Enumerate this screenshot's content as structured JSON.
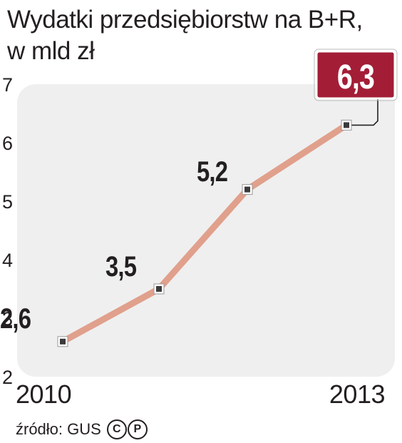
{
  "title": {
    "line1": "Wydatki przedsiębiorstw na B+R,",
    "line2": "w mld zł"
  },
  "source": {
    "label": "źródło: GUS",
    "copyright_marks": [
      "C",
      "P"
    ]
  },
  "colors": {
    "line": "#e0a08c",
    "marker_fill": "#ffffff",
    "marker_core": "#3a3a3a",
    "plot_background": "#efefef",
    "highlight_box": "#a31d36",
    "text": "#231f20"
  },
  "chart_data": {
    "type": "line",
    "title": "Wydatki przedsiębiorstw na B+R, w mld zł",
    "xlabel": "",
    "ylabel": "",
    "x": [
      2010,
      2011,
      2012,
      2013
    ],
    "x_tick_labels": [
      "2010",
      "2013"
    ],
    "values": [
      2.6,
      3.5,
      5.2,
      6.3
    ],
    "data_labels": [
      "2,6",
      "3,5",
      "5,2",
      "6,3"
    ],
    "highlighted_index": 3,
    "ylim": [
      2,
      7
    ],
    "y_ticks": [
      "2",
      "3",
      "4",
      "5",
      "6",
      "7"
    ],
    "grid": false,
    "legend": "none"
  }
}
